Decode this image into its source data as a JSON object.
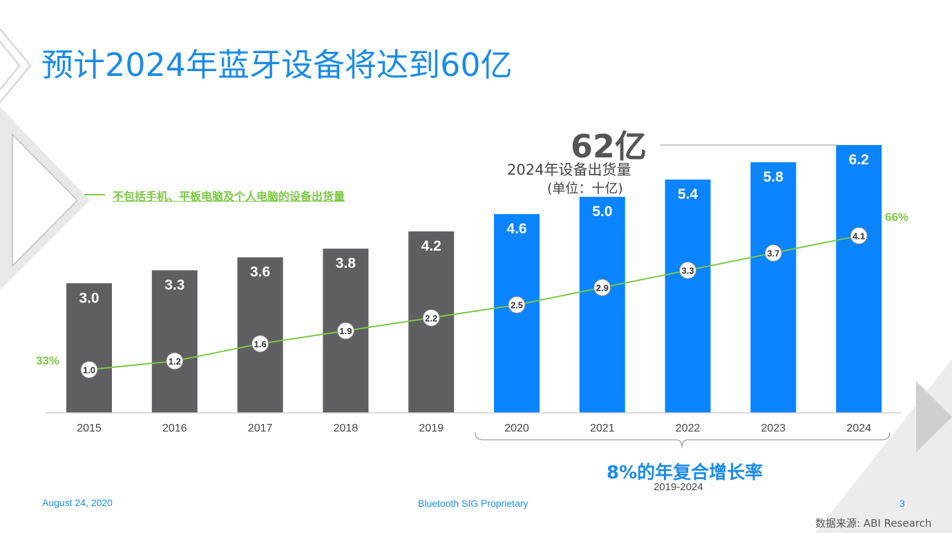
{
  "slide": {
    "title": "预计2024年蓝牙设备将达到60亿",
    "highlight_value": "62亿",
    "highlight_caption": "2024年设备出货量",
    "unit_note": "(单位：十亿)",
    "legend_label": "不包括手机、平板电脑及个人电脑的设备出货量",
    "cagr_label": "8%的年复合增长率",
    "cagr_period": "2019-2024",
    "footer_date": "August 24, 2020",
    "footer_center": "Bluetooth SIG Proprietary",
    "page_number": "3",
    "source": "数据来源: ABI Research"
  },
  "colors": {
    "accent_blue": "#1b8be6",
    "bar_blue": "#0a84ff",
    "bar_gray": "#5f5f62",
    "line_green": "#7ac943",
    "deco_gray": "#dcdcdc"
  },
  "chart_data": {
    "type": "bar",
    "categories": [
      "2015",
      "2016",
      "2017",
      "2018",
      "2019",
      "2020",
      "2021",
      "2022",
      "2023",
      "2024"
    ],
    "series": [
      {
        "values": [
          3.0,
          3.3,
          3.6,
          3.8,
          4.2,
          4.6,
          5.0,
          5.4,
          5.8,
          6.2
        ]
      },
      {
        "type": "line",
        "name": "不包括手机、平板电脑及个人电脑的设备出货量",
        "values": [
          1.0,
          1.2,
          1.6,
          1.9,
          2.2,
          2.5,
          2.9,
          3.3,
          3.7,
          4.1
        ]
      }
    ],
    "bar_labels": [
      "3.0",
      "3.3",
      "3.6",
      "3.8",
      "4.2",
      "4.6",
      "5.0",
      "5.4",
      "5.8",
      "6.2"
    ],
    "line_labels": [
      "1.0",
      "1.2",
      "1.6",
      "1.9",
      "2.2",
      "2.5",
      "2.9",
      "3.3",
      "3.7",
      "4.1"
    ],
    "bar_colors": [
      "gray",
      "gray",
      "gray",
      "gray",
      "gray",
      "blue",
      "blue",
      "blue",
      "blue",
      "blue"
    ],
    "line_start_label": "33%",
    "line_end_label": "66%",
    "ylim": [
      0,
      6.2
    ]
  }
}
